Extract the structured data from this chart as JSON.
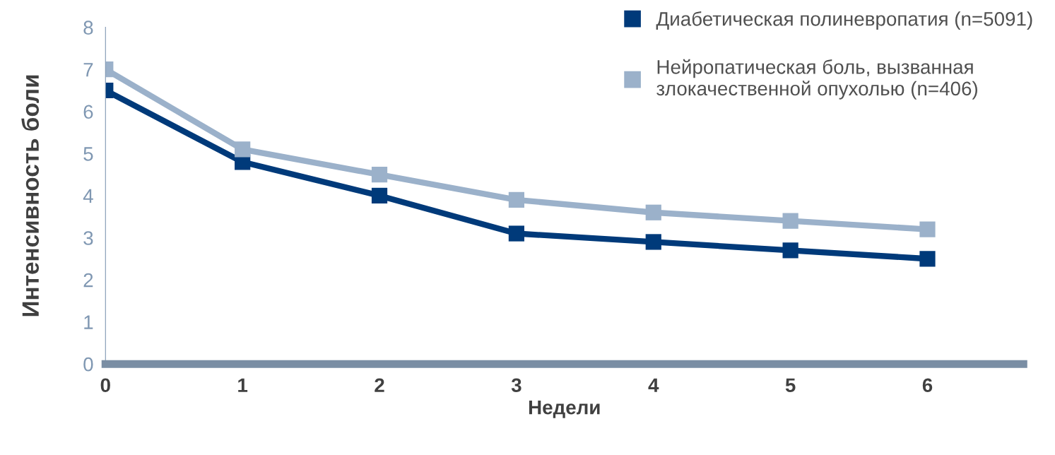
{
  "chart_data": {
    "type": "line",
    "xlabel": "Недели",
    "ylabel": "Интенсивность боли",
    "x": [
      0,
      1,
      2,
      3,
      4,
      5,
      6
    ],
    "series": [
      {
        "name": "Диабетическая полиневропатия (n=5091)",
        "color": "#003a7a",
        "values": [
          6.5,
          4.8,
          4.0,
          3.1,
          2.9,
          2.7,
          2.5
        ]
      },
      {
        "name": "Нейропатическая боль, вызванная\nзлокачественной опухолью (n=406)",
        "color": "#9bb1ca",
        "values": [
          7.0,
          5.1,
          4.5,
          3.9,
          3.6,
          3.4,
          3.2
        ]
      }
    ],
    "xlim": [
      0,
      6.7
    ],
    "xticks": [
      0,
      1,
      2,
      3,
      4,
      5,
      6
    ],
    "ylim": [
      0,
      8
    ],
    "yticks": [
      0,
      1,
      2,
      3,
      4,
      5,
      6,
      7,
      8
    ],
    "marker": "square",
    "line_style": "solid",
    "grid": false,
    "legend": "top right"
  }
}
